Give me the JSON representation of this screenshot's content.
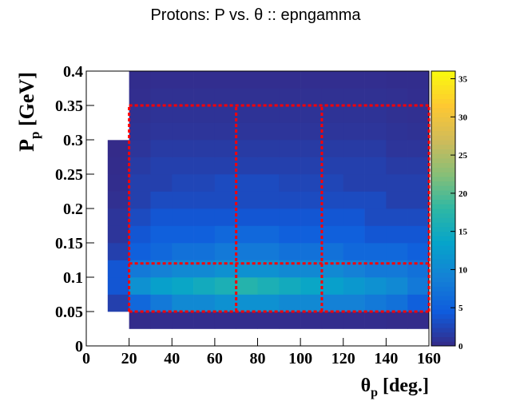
{
  "chart_data": {
    "type": "heatmap",
    "title": "Protons: P vs.  θ :: epngamma",
    "x_label": {
      "symbol": "θ",
      "subscript": "p",
      "unit": " [deg.]"
    },
    "y_label": {
      "symbol": "P",
      "subscript": "p",
      "unit": " [GeV]"
    },
    "xlim": [
      0,
      160
    ],
    "ylim": [
      0,
      0.4
    ],
    "xticks": [
      0,
      20,
      40,
      60,
      80,
      100,
      120,
      140,
      160
    ],
    "yticks": [
      0,
      0.05,
      0.1,
      0.15,
      0.2,
      0.25,
      0.3,
      0.35,
      0.4
    ],
    "zlim": [
      0,
      36
    ],
    "zticks": [
      0,
      5,
      10,
      15,
      20,
      25,
      30,
      35
    ],
    "xbins": [
      0,
      10,
      20,
      30,
      40,
      50,
      60,
      70,
      80,
      90,
      100,
      110,
      120,
      130,
      140,
      150,
      160
    ],
    "ybins": [
      0,
      0.025,
      0.05,
      0.075,
      0.1,
      0.125,
      0.15,
      0.175,
      0.2,
      0.225,
      0.25,
      0.275,
      0.3,
      0.325,
      0.35,
      0.375,
      0.4
    ],
    "z": [
      [
        0,
        0,
        0,
        0,
        0,
        0,
        0,
        0,
        0,
        0,
        0,
        0,
        0,
        0,
        0,
        0
      ],
      [
        0,
        0,
        0.2,
        0.3,
        0.3,
        0.3,
        0.3,
        0.3,
        0.3,
        0.3,
        0.3,
        0.3,
        0.3,
        0.3,
        0.2,
        0.2
      ],
      [
        0,
        2,
        6,
        8,
        10,
        10,
        11,
        11,
        11,
        10,
        10,
        9,
        9,
        8,
        7,
        5
      ],
      [
        0,
        4,
        11,
        13,
        14,
        15,
        16,
        17,
        16,
        15,
        14,
        13,
        12,
        11,
        10,
        8
      ],
      [
        0,
        4,
        8,
        9,
        10,
        10,
        11,
        11,
        11,
        10,
        10,
        10,
        9,
        8,
        8,
        7
      ],
      [
        0,
        2,
        5,
        6,
        7,
        7,
        8,
        8,
        8,
        7,
        7,
        7,
        6,
        6,
        6,
        5
      ],
      [
        0,
        1,
        4,
        5,
        5,
        5,
        6,
        6,
        6,
        5,
        5,
        5,
        5,
        4,
        4,
        4
      ],
      [
        0,
        1,
        3,
        4,
        4,
        4,
        4,
        4,
        4,
        4,
        4,
        4,
        4,
        3,
        3,
        3
      ],
      [
        0,
        0.5,
        2,
        3,
        3,
        3,
        3,
        3,
        3,
        3,
        3,
        3,
        3,
        3,
        2,
        2
      ],
      [
        0,
        0.3,
        2,
        2,
        2.5,
        2.5,
        3,
        3,
        3,
        2.5,
        2.5,
        2.5,
        2,
        2,
        2,
        2
      ],
      [
        0,
        0.2,
        1.5,
        2,
        2,
        2,
        2,
        2,
        2,
        2,
        2,
        2,
        2,
        2,
        1.5,
        1.5
      ],
      [
        0,
        0.1,
        1,
        1.5,
        1.5,
        1.5,
        1.5,
        1.5,
        1.5,
        1.5,
        1.5,
        1.5,
        1.5,
        1.5,
        1,
        1
      ],
      [
        0,
        0,
        0.8,
        1,
        1,
        1,
        1,
        1,
        1,
        1,
        1,
        1,
        1,
        1,
        0.8,
        0.7
      ],
      [
        0,
        0,
        0.6,
        0.8,
        0.8,
        0.8,
        0.8,
        0.8,
        0.8,
        0.8,
        0.8,
        0.8,
        0.8,
        0.8,
        0.6,
        0.5
      ],
      [
        0,
        0,
        0.4,
        0.6,
        0.6,
        0.6,
        0.6,
        0.6,
        0.6,
        0.6,
        0.6,
        0.6,
        0.6,
        0.6,
        0.5,
        0.4
      ],
      [
        0,
        0,
        0.3,
        0.4,
        0.4,
        0.4,
        0.4,
        0.4,
        0.4,
        0.4,
        0.4,
        0.4,
        0.4,
        0.4,
        0.3,
        0.3
      ]
    ],
    "cuts": {
      "x": [
        20,
        70,
        110,
        160
      ],
      "y": [
        0.05,
        0.12,
        0.35
      ],
      "color": "#ff0000"
    }
  }
}
